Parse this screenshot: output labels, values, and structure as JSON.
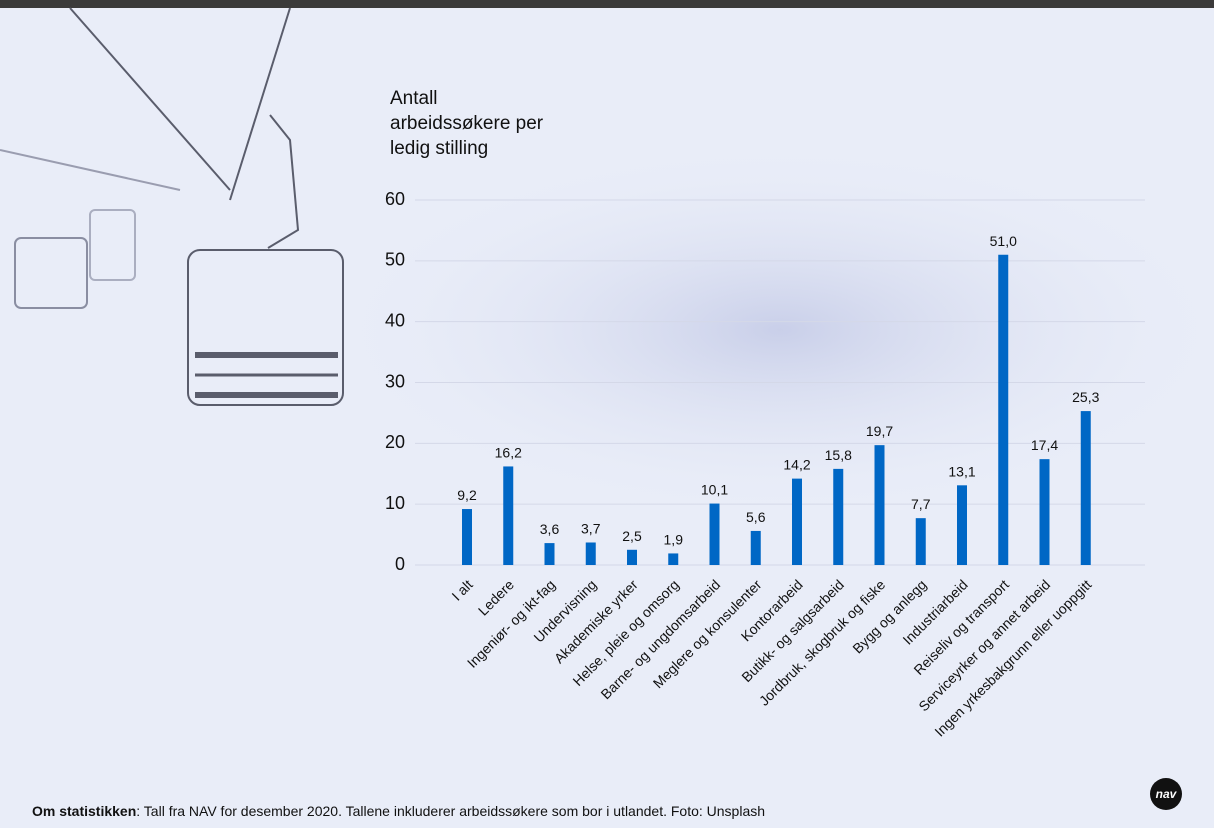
{
  "chart_data": {
    "type": "bar",
    "title": "Antall arbeidssøkere per ledig stilling",
    "categories": [
      "I alt",
      "Ledere",
      "Ingeniør- og ikt-fag",
      "Undervisning",
      "Akademiske yrker",
      "Helse, pleie og omsorg",
      "Barne- og ungdomsarbeid",
      "Meglere og konsulenter",
      "Kontorarbeid",
      "Butikk- og salgsarbeid",
      "Jordbruk, skogbruk og fiske",
      "Bygg og anlegg",
      "Industriarbeid",
      "Reiseliv og transport",
      "Serviceyrker og annet arbeid",
      "Ingen yrkesbakgrunn eller uoppgitt"
    ],
    "values": [
      9.2,
      16.2,
      3.6,
      3.7,
      2.5,
      1.9,
      10.1,
      5.6,
      14.2,
      15.8,
      19.7,
      7.7,
      13.1,
      51.0,
      17.4,
      25.3
    ],
    "value_labels": [
      "9,2",
      "16,2",
      "3,6",
      "3,7",
      "2,5",
      "1,9",
      "10,1",
      "5,6",
      "14,2",
      "15,8",
      "19,7",
      "7,7",
      "13,1",
      "51,0",
      "17,4",
      "25,3"
    ],
    "color": "#0067c5",
    "ylim": [
      0,
      60
    ],
    "yticks": [
      0,
      10,
      20,
      30,
      40,
      50,
      60
    ],
    "grid": true
  },
  "footer": {
    "label": "Om statistikken",
    "text": ": Tall fra NAV for desember 2020. Tallene inkluderer arbeidssøkere som bor i utlandet. Foto: Unsplash"
  },
  "logo": "nav"
}
